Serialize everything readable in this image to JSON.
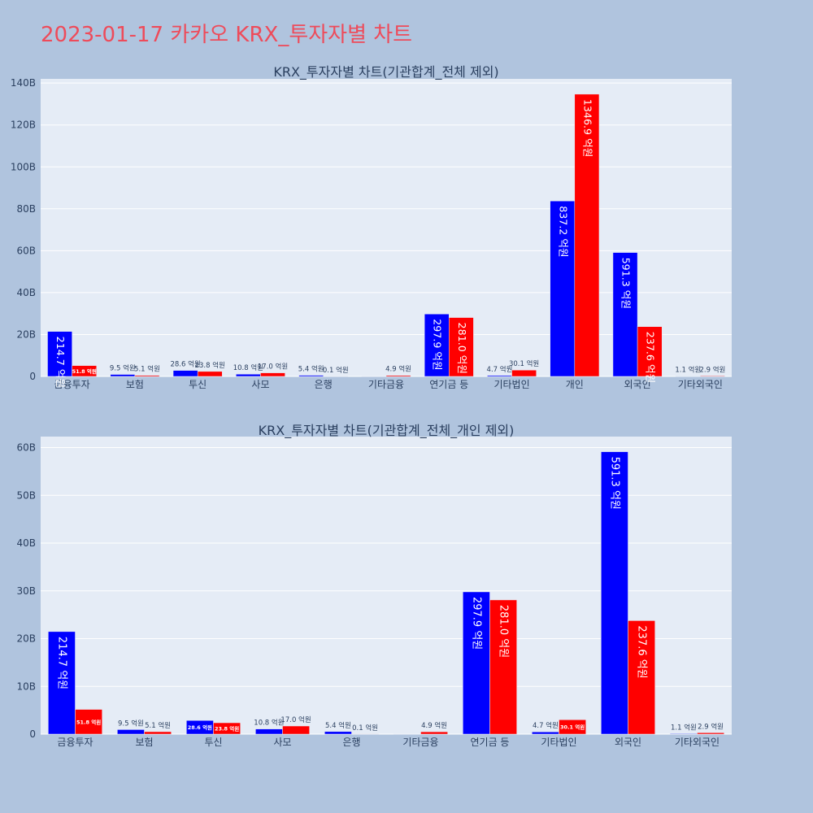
{
  "page": {
    "title": "2023-01-17 카카오 KRX_투자자별 차트",
    "background": "#b0c4de",
    "plot_background": "#e5ecf6",
    "title_color": "#ee4b5a"
  },
  "chart_data": [
    {
      "type": "bar",
      "title": "KRX_투자자별 차트(기관합계_전체 제외)",
      "categories": [
        "금융투자",
        "보험",
        "투신",
        "사모",
        "은행",
        "기타금융",
        "연기금 등",
        "기타법인",
        "개인",
        "외국인",
        "기타외국인"
      ],
      "series": [
        {
          "color": "#0000ff",
          "values": [
            21.47,
            0.95,
            2.86,
            1.08,
            0.54,
            0,
            29.79,
            0.47,
            83.72,
            59.13,
            0.11
          ],
          "labels": [
            "214.7 억원",
            "9.5 억원",
            "28.6 억원",
            "10.8 억원",
            "5.4 억원",
            "",
            "297.9 억원",
            "4.7 억원",
            "837.2 억원",
            "591.3 억원",
            "1.1 억원"
          ]
        },
        {
          "color": "#ff0000",
          "values": [
            5.18,
            0.51,
            2.38,
            1.7,
            0.01,
            0.49,
            28.1,
            3.01,
            134.69,
            23.76,
            0.29
          ],
          "labels": [
            "51.8 억원",
            "5.1 억원",
            "23.8 억원",
            "17.0 억원",
            "0.1 억원",
            "4.9 억원",
            "281.0 억원",
            "30.1 억원",
            "1346.9 억원",
            "237.6 억원",
            "2.9 억원"
          ]
        }
      ],
      "ylim": [
        0,
        142
      ],
      "yticks": [
        0,
        20,
        40,
        60,
        80,
        100,
        120,
        140
      ],
      "ytick_labels": [
        "0",
        "20B",
        "40B",
        "60B",
        "80B",
        "100B",
        "120B",
        "140B"
      ],
      "grid": true,
      "legend": "none"
    },
    {
      "type": "bar",
      "title": "KRX_투자자별 차트(기관합계_전체_개인 제외)",
      "categories": [
        "금융투자",
        "보험",
        "투신",
        "사모",
        "은행",
        "기타금융",
        "연기금 등",
        "기타법인",
        "외국인",
        "기타외국인"
      ],
      "series": [
        {
          "color": "#0000ff",
          "values": [
            21.47,
            0.95,
            2.86,
            1.08,
            0.54,
            0,
            29.79,
            0.47,
            59.13,
            0.11
          ],
          "labels": [
            "214.7 억원",
            "9.5 억원",
            "28.6 억원",
            "10.8 억원",
            "5.4 억원",
            "",
            "297.9 억원",
            "4.7 억원",
            "591.3 억원",
            "1.1 억원"
          ]
        },
        {
          "color": "#ff0000",
          "values": [
            5.18,
            0.51,
            2.38,
            1.7,
            0.01,
            0.49,
            28.1,
            3.01,
            23.76,
            0.29
          ],
          "labels": [
            "51.8 억원",
            "5.1 억원",
            "23.8 억원",
            "17.0 억원",
            "0.1 억원",
            "4.9 억원",
            "281.0 억원",
            "30.1 억원",
            "237.6 억원",
            "2.9 억원"
          ]
        }
      ],
      "ylim": [
        0,
        62.3
      ],
      "yticks": [
        0,
        10,
        20,
        30,
        40,
        50,
        60
      ],
      "ytick_labels": [
        "0",
        "10B",
        "20B",
        "30B",
        "40B",
        "50B",
        "60B"
      ],
      "grid": true,
      "legend": "none"
    }
  ]
}
